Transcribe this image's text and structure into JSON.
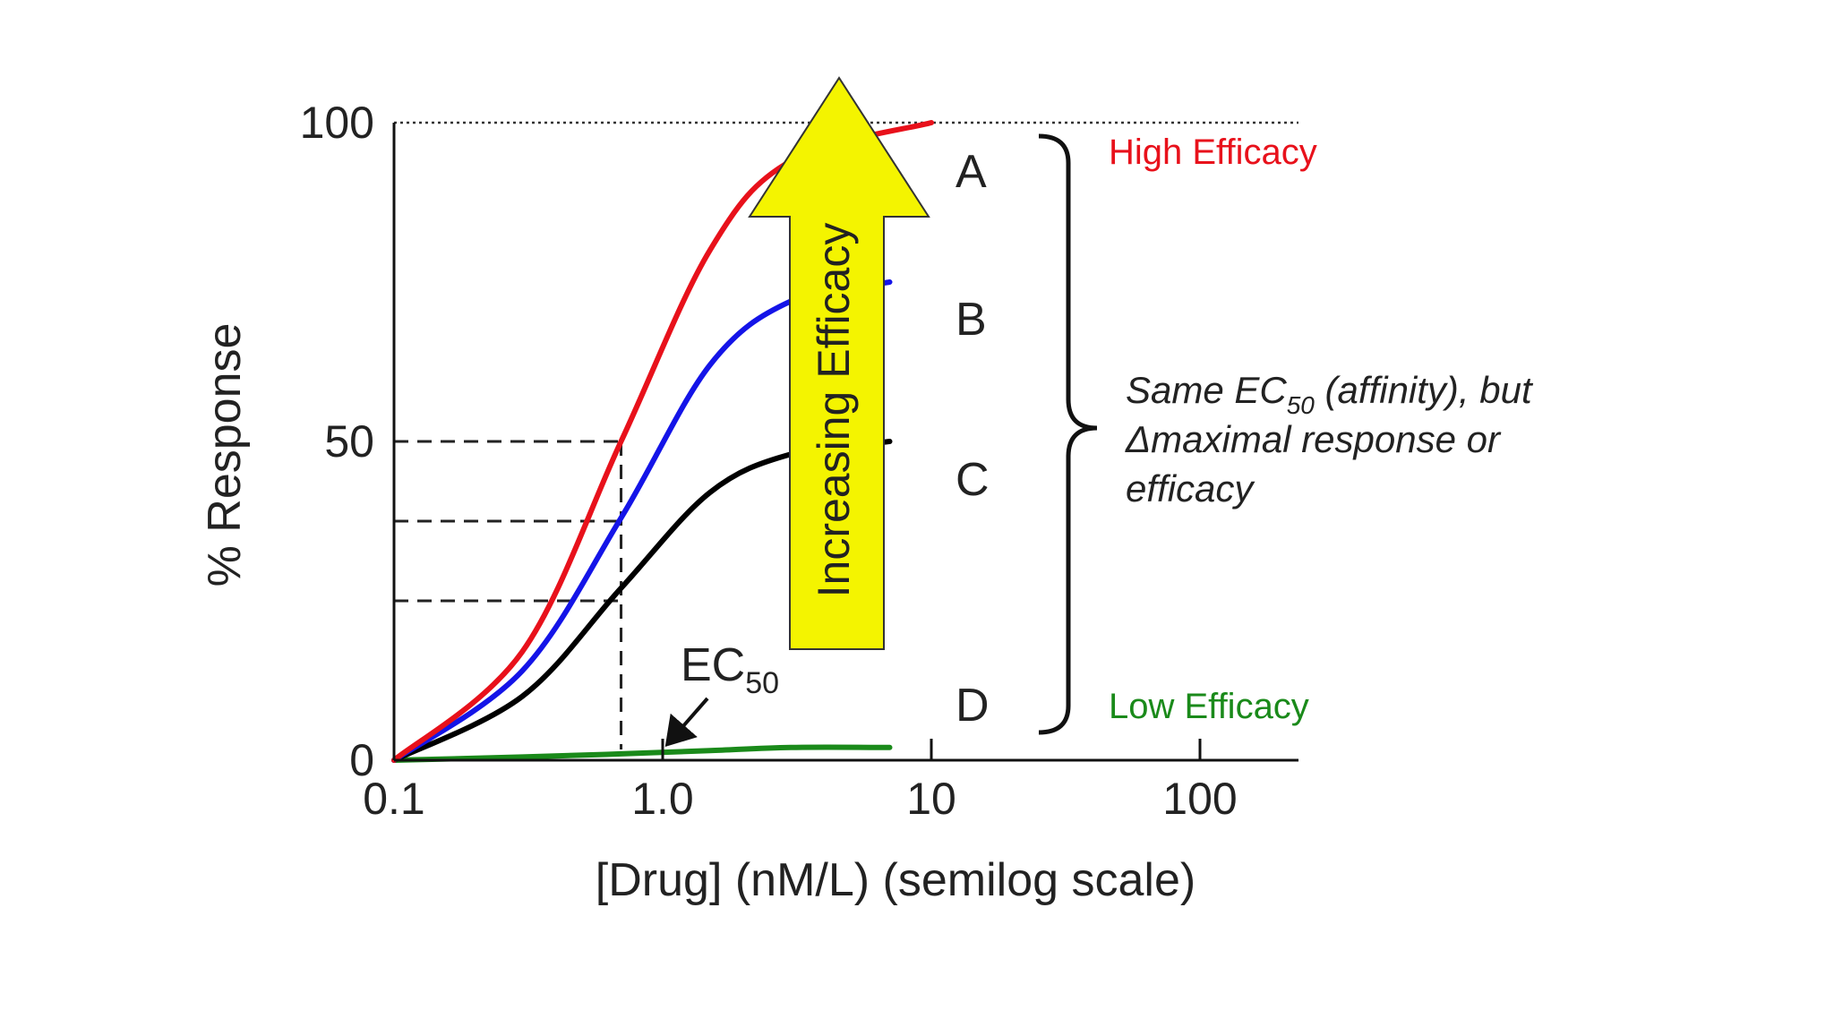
{
  "chart_data": {
    "type": "line",
    "xlabel": "[Drug] (nM/L) (semilog scale)",
    "ylabel": "% Response",
    "x_scale": "log",
    "xlim": [
      0.1,
      100
    ],
    "ylim": [
      0,
      100
    ],
    "x_ticks": [
      0.1,
      1.0,
      10,
      100
    ],
    "x_tick_labels": [
      "0.1",
      "1.0",
      "10",
      "100"
    ],
    "y_ticks": [
      0,
      50,
      100
    ],
    "y_tick_labels": [
      "0",
      "50",
      "100"
    ],
    "ec50": 0.7,
    "series": [
      {
        "name": "A",
        "color": "#e8111b",
        "emax": 100,
        "x": [
          0.1,
          0.3,
          0.7,
          1.5,
          3,
          10
        ],
        "y": [
          0,
          17,
          50,
          80,
          94,
          100
        ]
      },
      {
        "name": "B",
        "color": "#1414e8",
        "emax": 75,
        "x": [
          0.1,
          0.3,
          0.7,
          1.5,
          3,
          7
        ],
        "y": [
          0,
          14,
          38,
          62,
          72,
          75
        ]
      },
      {
        "name": "C",
        "color": "#000000",
        "emax": 50,
        "x": [
          0.1,
          0.3,
          0.7,
          1.5,
          3,
          7
        ],
        "y": [
          0,
          10,
          27,
          42,
          48,
          50
        ]
      },
      {
        "name": "D",
        "color": "#1a8a1a",
        "emax": 2,
        "x": [
          0.1,
          0.3,
          0.7,
          1.5,
          3,
          7
        ],
        "y": [
          0,
          0.5,
          1,
          1.5,
          2,
          2
        ]
      }
    ],
    "annotations": {
      "ec50_text": "EC",
      "ec50_sub": "50",
      "arrow_text": "Increasing Efficacy",
      "arrow_color": "#f4f400",
      "high_efficacy": "High Efficacy",
      "low_efficacy": "Low Efficacy",
      "high_color": "#e8111b",
      "low_color": "#1a8a1a",
      "note_line1_a": "Same EC",
      "note_line1_sub": "50",
      "note_line1_b": " (affinity), but",
      "note_line2": "Δmaximal response or",
      "note_line3": "efficacy"
    }
  }
}
